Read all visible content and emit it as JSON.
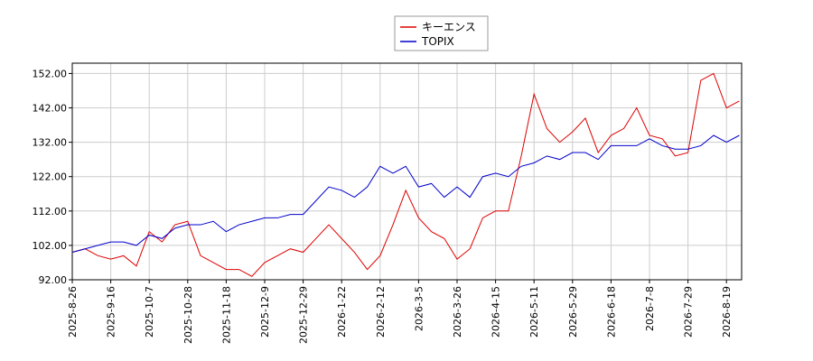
{
  "chart_data": {
    "type": "line",
    "categories": [
      "2025-8-26",
      null,
      null,
      "2025-9-16",
      null,
      null,
      "2025-10-7",
      null,
      null,
      "2025-10-28",
      null,
      null,
      "2025-11-18",
      null,
      null,
      "2025-12-9",
      null,
      null,
      "2025-12-29",
      null,
      null,
      "2026-1-22",
      null,
      null,
      "2026-2-12",
      null,
      null,
      "2026-3-5",
      null,
      null,
      "2026-3-26",
      null,
      null,
      "2026-4-15",
      null,
      null,
      "2026-5-11",
      null,
      null,
      "2026-5-29",
      null,
      null,
      "2026-6-18",
      null,
      null,
      "2026-7-8",
      null,
      null,
      "2026-7-29",
      null,
      null,
      "2026-8-19",
      null
    ],
    "series": [
      {
        "name": "キーエンス",
        "color": "#dd0000",
        "values": [
          100,
          101,
          99,
          98,
          99,
          96,
          106,
          103,
          108,
          109,
          99,
          97,
          95,
          95,
          93,
          97,
          99,
          101,
          100,
          104,
          108,
          104,
          100,
          95,
          99,
          108,
          118,
          110,
          106,
          104,
          98,
          101,
          110,
          112,
          112,
          128,
          146,
          136,
          132,
          135,
          139,
          129,
          134,
          136,
          142,
          134,
          133,
          128,
          129,
          150,
          152,
          142,
          144
        ]
      },
      {
        "name": "TOPIX",
        "color": "#0000cc",
        "values": [
          100,
          101,
          102,
          103,
          103,
          102,
          105,
          104,
          107,
          108,
          108,
          109,
          106,
          108,
          109,
          110,
          110,
          111,
          111,
          115,
          119,
          118,
          116,
          119,
          125,
          123,
          125,
          119,
          120,
          116,
          119,
          116,
          122,
          123,
          122,
          125,
          126,
          128,
          127,
          129,
          129,
          127,
          131,
          131,
          131,
          133,
          131,
          130,
          130,
          131,
          134,
          132,
          134
        ]
      }
    ],
    "ylim": [
      92,
      155
    ],
    "yticks": [
      {
        "value": 92,
        "label": "92.00"
      },
      {
        "value": 102,
        "label": "102.00"
      },
      {
        "value": 112,
        "label": "112.00"
      },
      {
        "value": 122,
        "label": "122.00"
      },
      {
        "value": 132,
        "label": "132.00"
      },
      {
        "value": 142,
        "label": "142.00"
      },
      {
        "value": 152,
        "label": "152.00"
      }
    ],
    "grid": true
  }
}
